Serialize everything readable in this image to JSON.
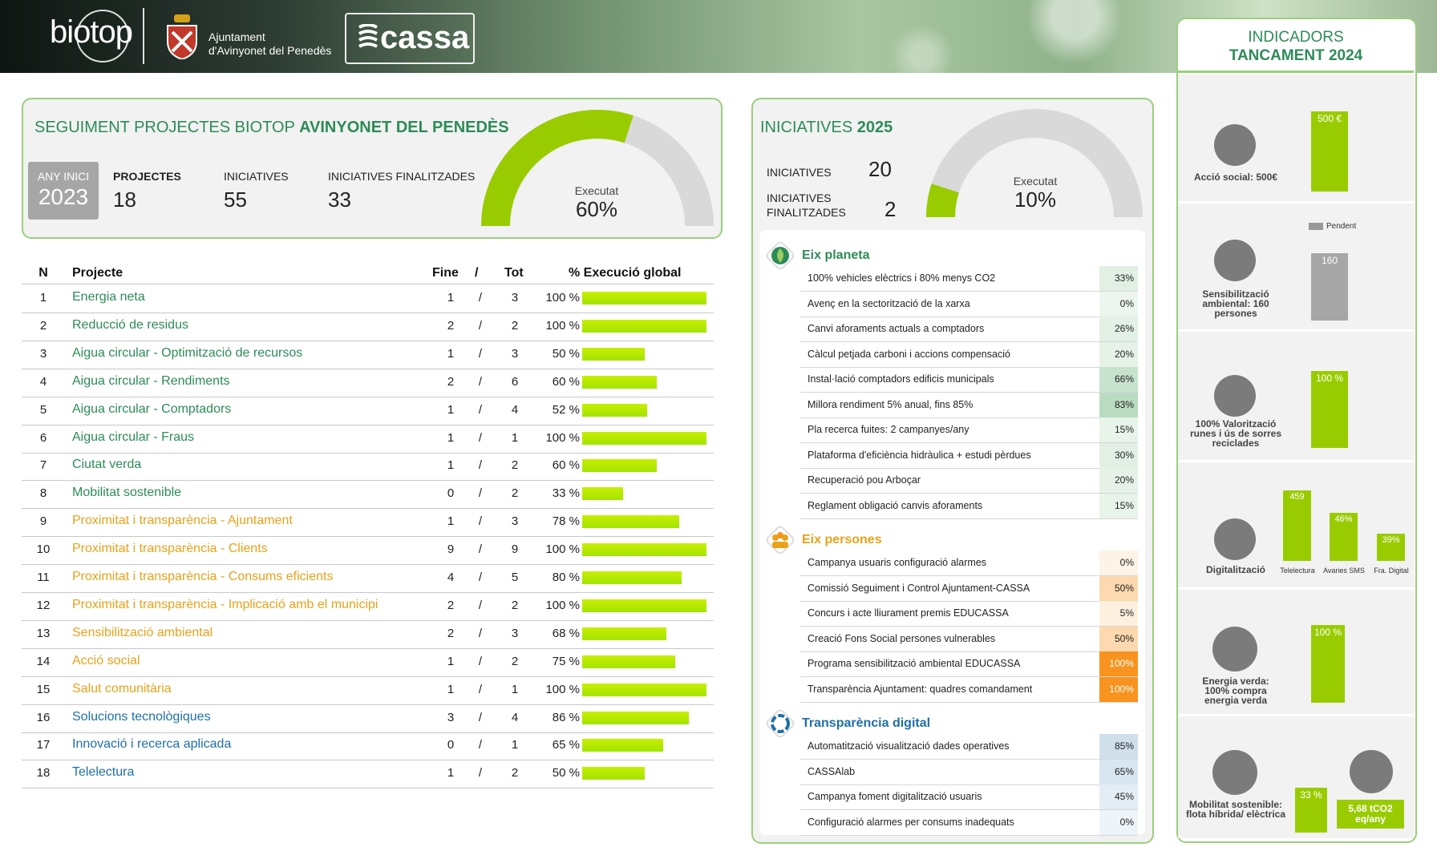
{
  "header": {
    "biotop_logo": "biotop",
    "municipality_line1": "Ajuntament",
    "municipality_line2": "d'Avinyonet del Penedès",
    "cassa_logo": "cassa"
  },
  "tracking": {
    "title_normal": "SEGUIMENT PROJECTES BIOTOP ",
    "title_bold": "AVINYONET DEL PENEDÈS",
    "start_year_label": "ANY INICI",
    "start_year": "2023",
    "projects_label": "PROJECTES",
    "projects_value": "18",
    "initiatives_label": "INICIATIVES",
    "initiatives_value": "55",
    "finished_label": "INICIATIVES FINALITZADES",
    "finished_value": "33",
    "gauge_label": "Executat",
    "gauge_value": "60%",
    "gauge_fraction": 0.6
  },
  "projects_table": {
    "headers": {
      "n": "N",
      "project": "Projecte",
      "finished": "Fine",
      "slash": "/",
      "total": "Tot",
      "execution": "% Execució global"
    },
    "rows": [
      {
        "n": "1",
        "name": "Energia neta",
        "fin": "1",
        "tot": "3",
        "pct": "100 %",
        "value": 100,
        "color": "#2e8b57"
      },
      {
        "n": "2",
        "name": "Reducció de residus",
        "fin": "2",
        "tot": "2",
        "pct": "100 %",
        "value": 100,
        "color": "#2e8b57"
      },
      {
        "n": "3",
        "name": "Aigua circular - Optimització de recursos",
        "fin": "1",
        "tot": "3",
        "pct": "50 %",
        "value": 50,
        "color": "#2e8b57"
      },
      {
        "n": "4",
        "name": "Aigua circular - Rendiments",
        "fin": "2",
        "tot": "6",
        "pct": "60 %",
        "value": 60,
        "color": "#2e8b57"
      },
      {
        "n": "5",
        "name": "Aigua circular - Comptadors",
        "fin": "1",
        "tot": "4",
        "pct": "52 %",
        "value": 52,
        "color": "#2e8b57"
      },
      {
        "n": "6",
        "name": "Aigua circular - Fraus",
        "fin": "1",
        "tot": "1",
        "pct": "100 %",
        "value": 100,
        "color": "#2e8b57"
      },
      {
        "n": "7",
        "name": "Ciutat verda",
        "fin": "1",
        "tot": "2",
        "pct": "60 %",
        "value": 60,
        "color": "#2e8b57"
      },
      {
        "n": "8",
        "name": "Mobilitat sostenible",
        "fin": "0",
        "tot": "2",
        "pct": "33 %",
        "value": 33,
        "color": "#2e8b57"
      },
      {
        "n": "9",
        "name": "Proximitat i transparència - Ajuntament",
        "fin": "1",
        "tot": "3",
        "pct": "78 %",
        "value": 78,
        "color": "#e8a21b"
      },
      {
        "n": "10",
        "name": "Proximitat i transparència - Clients",
        "fin": "9",
        "tot": "9",
        "pct": "100 %",
        "value": 100,
        "color": "#e8a21b"
      },
      {
        "n": "11",
        "name": "Proximitat i transparència - Consums eficients",
        "fin": "4",
        "tot": "5",
        "pct": "80 %",
        "value": 80,
        "color": "#e8a21b"
      },
      {
        "n": "12",
        "name": "Proximitat i transparència - Implicació amb el municipi",
        "fin": "2",
        "tot": "2",
        "pct": "100 %",
        "value": 100,
        "color": "#e8a21b"
      },
      {
        "n": "13",
        "name": "Sensibilització ambiental",
        "fin": "2",
        "tot": "3",
        "pct": "68 %",
        "value": 68,
        "color": "#e8a21b"
      },
      {
        "n": "14",
        "name": "Acció social",
        "fin": "1",
        "tot": "2",
        "pct": "75 %",
        "value": 75,
        "color": "#e8a21b"
      },
      {
        "n": "15",
        "name": "Salut comunitària",
        "fin": "1",
        "tot": "1",
        "pct": "100 %",
        "value": 100,
        "color": "#e8a21b"
      },
      {
        "n": "16",
        "name": "Solucions tecnològiques",
        "fin": "3",
        "tot": "4",
        "pct": "86 %",
        "value": 86,
        "color": "#1f6fa8"
      },
      {
        "n": "17",
        "name": "Innovació i recerca aplicada",
        "fin": "0",
        "tot": "1",
        "pct": "65 %",
        "value": 65,
        "color": "#1f6fa8"
      },
      {
        "n": "18",
        "name": "Telelectura",
        "fin": "1",
        "tot": "2",
        "pct": "50 %",
        "value": 50,
        "color": "#1f6fa8"
      }
    ]
  },
  "initiatives": {
    "title_normal": "INICIATIVES ",
    "title_bold": "2025",
    "count_label": "INICIATIVES",
    "count_value": "20",
    "finished_label_line1": "INICIATIVES",
    "finished_label_line2": "FINALITZADES",
    "finished_value": "2",
    "gauge_label": "Executat",
    "gauge_value": "10%",
    "gauge_fraction": 0.1,
    "axes": [
      {
        "title": "Eix planeta",
        "color": "#2e8b57",
        "icon": "leaf-icon",
        "items": [
          {
            "text": "100% vehicles elèctrics i 80% menys CO2",
            "pct": "33%",
            "bg": "#e1efe4"
          },
          {
            "text": "Avenç en la sectorització de la xarxa",
            "pct": "0%",
            "bg": "#edf5ef"
          },
          {
            "text": "Canvi aforaments actuals a comptadors",
            "pct": "26%",
            "bg": "#e3f0e6"
          },
          {
            "text": "Càlcul petjada carboni i accions compensació",
            "pct": "20%",
            "bg": "#e6f2e8"
          },
          {
            "text": "Instal·lació comptadors edificis municipals",
            "pct": "66%",
            "bg": "#c7e2cd"
          },
          {
            "text": "Millora rendiment 5% anual, fins 85%",
            "pct": "83%",
            "bg": "#b9dbc0"
          },
          {
            "text": "Pla recerca fuites: 2 campanyes/any",
            "pct": "15%",
            "bg": "#e8f3ea"
          },
          {
            "text": "Plataforma d'eficiència hidràulica + estudi pèrdues",
            "pct": "30%",
            "bg": "#e2efe5"
          },
          {
            "text": "Recuperació pou Arboçar",
            "pct": "20%",
            "bg": "#e6f2e8"
          },
          {
            "text": "Reglament obligació canvis aforaments",
            "pct": "15%",
            "bg": "#e8f3ea"
          }
        ]
      },
      {
        "title": "Eix persones",
        "color": "#e8a21b",
        "icon": "people-icon",
        "items": [
          {
            "text": "Campanya usuaris configuració alarmes",
            "pct": "0%",
            "bg": "#fdf3e6"
          },
          {
            "text": "Comissió Seguiment i Control Ajuntament-CASSA",
            "pct": "50%",
            "bg": "#fcd9ae"
          },
          {
            "text": "Concurs i acte lliurament premis EDUCASSA",
            "pct": "5%",
            "bg": "#fdf0df"
          },
          {
            "text": "Creació Fons Social persones vulnerables",
            "pct": "50%",
            "bg": "#fcd9ae"
          },
          {
            "text": "Programa sensibilització ambiental EDUCASSA",
            "pct": "100%",
            "bg": "#f7931e",
            "light": true
          },
          {
            "text": "Transparència Ajuntament: quadres comandament",
            "pct": "100%",
            "bg": "#f7931e",
            "light": true
          }
        ]
      },
      {
        "title": "Transparència digital",
        "color": "#1f6fa8",
        "icon": "ring-icon",
        "items": [
          {
            "text": "Automatització visualització dades operatives",
            "pct": "85%",
            "bg": "#cfdfec"
          },
          {
            "text": "CASSAlab",
            "pct": "65%",
            "bg": "#d8e6f1"
          },
          {
            "text": "Campanya foment digitalització usuaris",
            "pct": "45%",
            "bg": "#e3edf5"
          },
          {
            "text": "Configuració alarmes per consums inadequats",
            "pct": "0%",
            "bg": "#eef4f9"
          }
        ]
      }
    ]
  },
  "indicators": {
    "title_line1": "INDICADORS",
    "title_line2": "TANCAMENT 2024",
    "social_label": "Acció social: 500€",
    "social_bar": "500 €",
    "awareness_label": "Sensibilització ambiental: 160 persones",
    "awareness_legend": "Pendent",
    "awareness_bar": "160",
    "recycling_label": "100% Valorització runes i ús de sorres reciclades",
    "recycling_bar": "100 %",
    "digital_label": "Digitalització",
    "digital_bars": [
      {
        "value": "459",
        "label": "Telelectura"
      },
      {
        "value": "46%",
        "label": "Avaries SMS"
      },
      {
        "value": "39%",
        "label": "Fra. Digital"
      }
    ],
    "energy_label": "Energia verda: 100% compra energia verda",
    "energy_bar": "100 %",
    "mobility_label": "Mobilitat sostenible: flota híbrida/ elèctrica",
    "mobility_bar": "33 %",
    "co2_badge": "5,68 tCO2 eq/any"
  }
}
